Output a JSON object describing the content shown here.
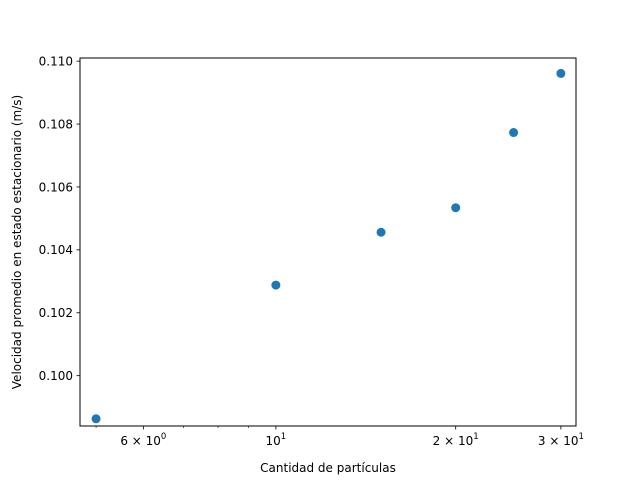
{
  "chart_data": {
    "type": "scatter",
    "title": "",
    "xlabel": "Cantidad de partículas",
    "ylabel": "Velocidad promedio en estado estacionario (m/s)",
    "xscale": "log",
    "x": [
      5,
      10,
      15,
      20,
      25,
      30
    ],
    "y": [
      0.09863,
      0.10288,
      0.10456,
      0.10534,
      0.10773,
      0.10961
    ],
    "xlim": [
      4.7,
      31.8
    ],
    "ylim": [
      0.0984,
      0.1101
    ],
    "marker_color": "#1f77b4",
    "grid": false,
    "x_major_ticks": [
      {
        "value": 6,
        "base": "6 × 10",
        "exp": "0"
      },
      {
        "value": 10,
        "base": "10",
        "exp": "1"
      },
      {
        "value": 20,
        "base": "2 × 10",
        "exp": "1"
      },
      {
        "value": 30,
        "base": "3 × 10",
        "exp": "1"
      }
    ],
    "x_minor_ticks": [
      5,
      7,
      8,
      9
    ],
    "y_ticks": [
      {
        "value": 0.1,
        "label": "0.100"
      },
      {
        "value": 0.102,
        "label": "0.102"
      },
      {
        "value": 0.104,
        "label": "0.104"
      },
      {
        "value": 0.106,
        "label": "0.106"
      },
      {
        "value": 0.108,
        "label": "0.108"
      },
      {
        "value": 0.11,
        "label": "0.110"
      }
    ]
  }
}
